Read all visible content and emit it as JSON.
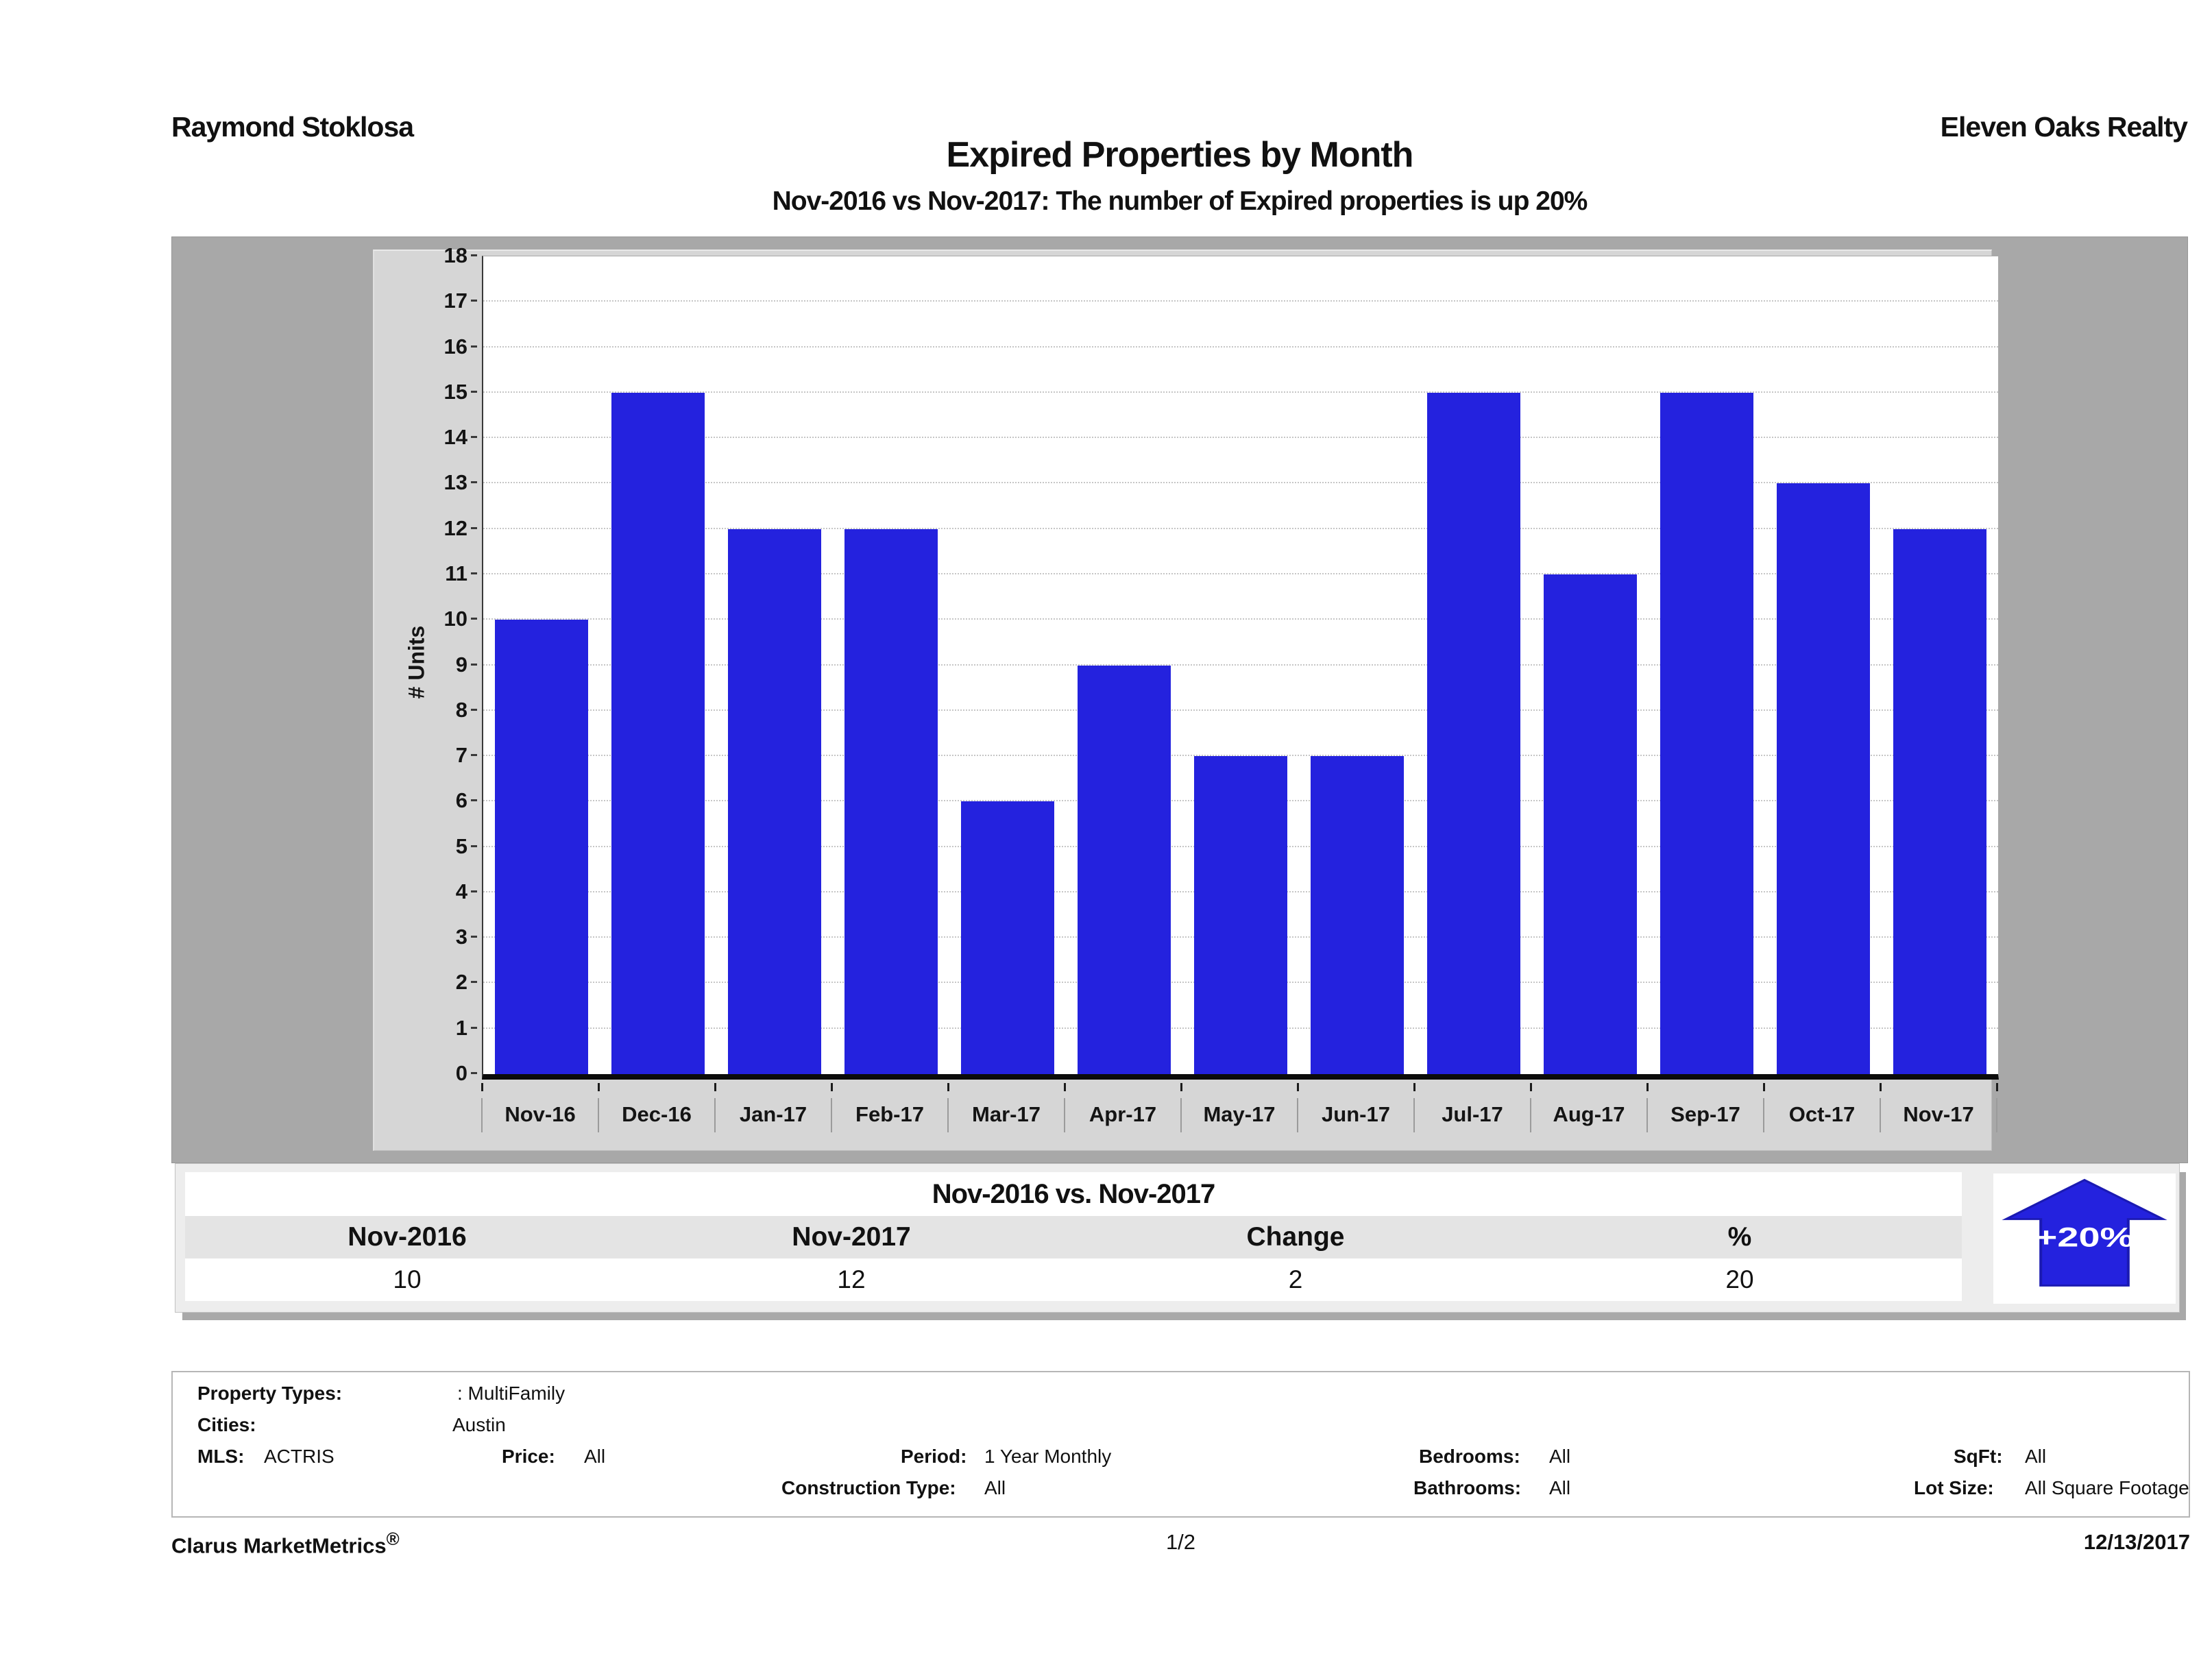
{
  "header": {
    "agent": "Raymond Stoklosa",
    "company": "Eleven Oaks Realty"
  },
  "title": "Expired Properties by Month",
  "subtitle": "Nov-2016 vs Nov-2017: The number of Expired  properties is up 20%",
  "chart_data": {
    "type": "bar",
    "title": "Expired Properties by Month",
    "categories": [
      "Nov-16",
      "Dec-16",
      "Jan-17",
      "Feb-17",
      "Mar-17",
      "Apr-17",
      "May-17",
      "Jun-17",
      "Jul-17",
      "Aug-17",
      "Sep-17",
      "Oct-17",
      "Nov-17"
    ],
    "values": [
      10,
      15,
      12,
      12,
      6,
      9,
      7,
      7,
      15,
      11,
      15,
      13,
      12
    ],
    "xlabel": "",
    "ylabel": "# Units",
    "ylim": [
      0,
      18
    ],
    "ytick_step": 1,
    "grid": "horizontal-dotted",
    "legend": "none",
    "bar_color": "#2422de",
    "plot_bg": "#ffffff",
    "panel_bg": "#d6d6d6",
    "frame_bg": "#a8a8a8"
  },
  "summary_table": {
    "title": "Nov-2016 vs. Nov-2017",
    "columns": [
      "Nov-2016",
      "Nov-2017",
      "Change",
      "%"
    ],
    "values": [
      "10",
      "12",
      "2",
      "20"
    ],
    "badge": {
      "label": "+20%",
      "direction": "up",
      "color": "#2422de"
    }
  },
  "filters": {
    "property_types_label": "Property Types:",
    "property_types_value": ": MultiFamily",
    "cities_label": "Cities:",
    "cities_value": "Austin",
    "mls_label": "MLS:",
    "mls_value": "ACTRIS",
    "price_label": "Price:",
    "price_value": "All",
    "period_label": "Period:",
    "period_value": "1 Year Monthly",
    "bedrooms_label": "Bedrooms:",
    "bedrooms_value": "All",
    "sqft_label": "SqFt:",
    "sqft_value": "All",
    "construction_label": "Construction Type:",
    "construction_value": "All",
    "bathrooms_label": "Bathrooms:",
    "bathrooms_value": "All",
    "lot_label": "Lot Size:",
    "lot_value": "All Square Footage"
  },
  "footer": {
    "brand": "Clarus MarketMetrics",
    "registered_mark": "®",
    "page": "1/2",
    "date": "12/13/2017"
  }
}
